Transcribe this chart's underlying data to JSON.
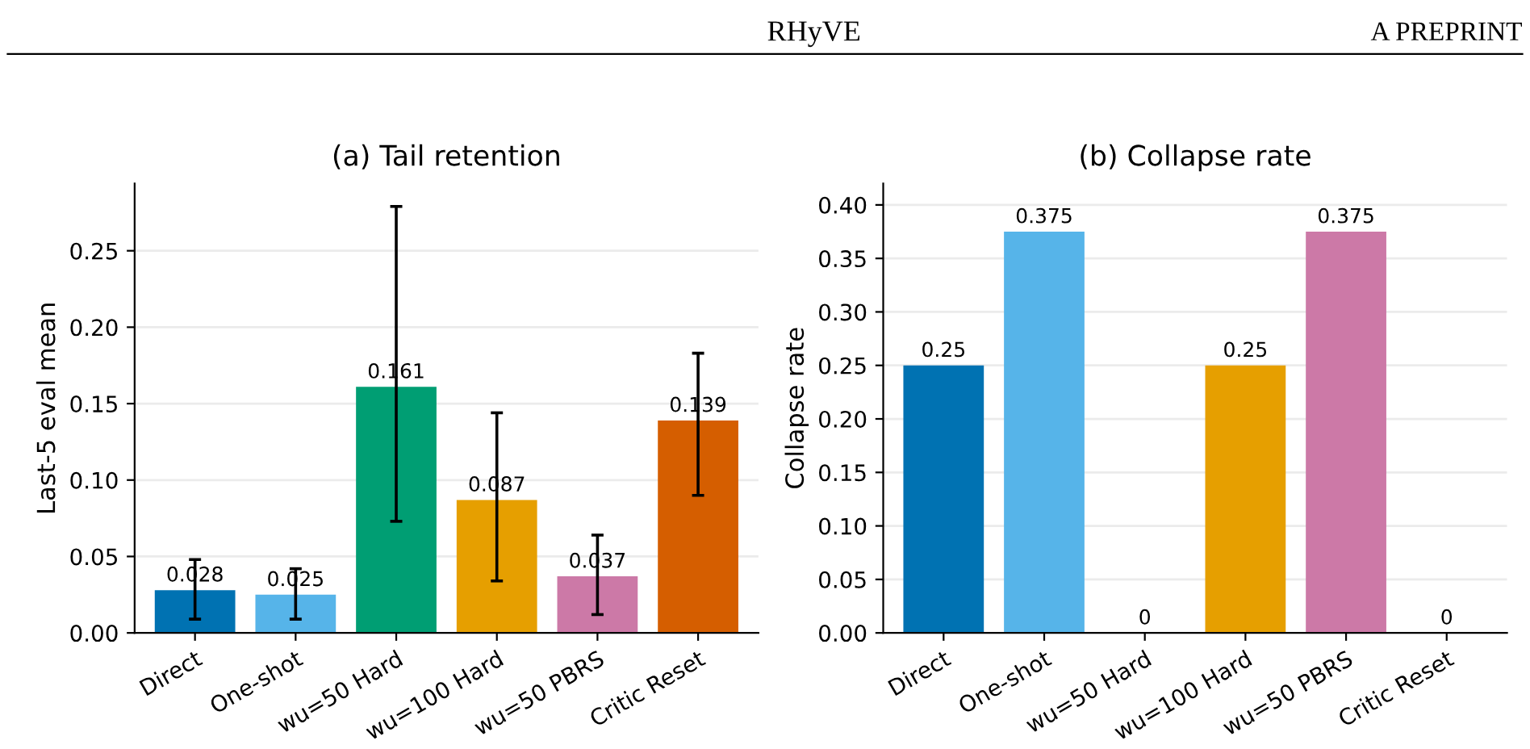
{
  "chart_data": [
    {
      "type": "bar",
      "title": "(a) Tail retention",
      "ylabel": "Last-5 eval mean",
      "annotations": [
        "RHyVE",
        "A PREPRINT"
      ],
      "categories": [
        "Direct",
        "One-shot",
        "wu=50 Hard",
        "wu=100 Hard",
        "wu=50 PBRS",
        "Critic Reset"
      ],
      "values": [
        0.028,
        0.025,
        0.161,
        0.087,
        0.037,
        0.139
      ],
      "errors": [
        [
          0.009,
          0.048
        ],
        [
          0.009,
          0.042
        ],
        [
          0.073,
          0.279
        ],
        [
          0.034,
          0.144
        ],
        [
          0.012,
          0.064
        ],
        [
          0.09,
          0.183
        ]
      ],
      "colors": [
        "#0072b2",
        "#56b4e9",
        "#009e73",
        "#e69f00",
        "#cc79a7",
        "#d55e00"
      ],
      "ylim": [
        0,
        0.294
      ],
      "yticks": [
        {
          "value": 0,
          "label": "0.00"
        },
        {
          "value": 0.05,
          "label": "0.05"
        },
        {
          "value": 0.1,
          "label": "0.10"
        },
        {
          "value": 0.15,
          "label": "0.15"
        },
        {
          "value": 0.2,
          "label": "0.20"
        },
        {
          "value": 0.25,
          "label": "0.25"
        }
      ],
      "grid": "y",
      "data_labels": true
    },
    {
      "type": "bar",
      "title": "(b) Collapse rate",
      "ylabel": "Collapse rate",
      "categories": [
        "Direct",
        "One-shot",
        "wu=50 Hard",
        "wu=100 Hard",
        "wu=50 PBRS",
        "Critic Reset"
      ],
      "values": [
        0.25,
        0.375,
        0,
        0.25,
        0.375,
        0
      ],
      "colors": [
        "#0072b2",
        "#56b4e9",
        "#009e73",
        "#e69f00",
        "#cc79a7",
        "#d55e00"
      ],
      "ylim": [
        0,
        0.42
      ],
      "yticks": [
        {
          "value": 0,
          "label": "0.00"
        },
        {
          "value": 0.05,
          "label": "0.05"
        },
        {
          "value": 0.1,
          "label": "0.10"
        },
        {
          "value": 0.15,
          "label": "0.15"
        },
        {
          "value": 0.2,
          "label": "0.20"
        },
        {
          "value": 0.25,
          "label": "0.25"
        },
        {
          "value": 0.3,
          "label": "0.30"
        },
        {
          "value": 0.35,
          "label": "0.35"
        },
        {
          "value": 0.4,
          "label": "0.40"
        }
      ],
      "grid": "y",
      "data_labels": true
    }
  ]
}
